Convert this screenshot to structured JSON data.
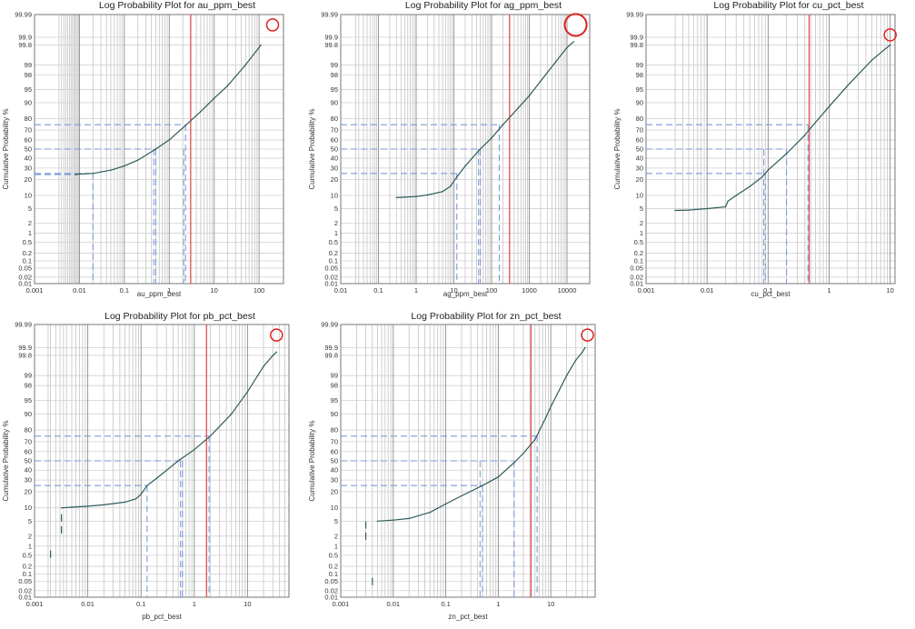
{
  "chart_data": [
    {
      "type": "line",
      "title": "Log Probability Plot for au_ppm_best",
      "xlabel": "au_ppm_best",
      "ylabel": "Cumulative Probability %",
      "xscale": "log",
      "yscale": "probability",
      "xlim": [
        0.001,
        350
      ],
      "ylim": [
        0.01,
        99.99
      ],
      "x_ticks": [
        0.001,
        0.01,
        0.1,
        1,
        10,
        100
      ],
      "x_tick_labels": [
        "0.001",
        "0.01",
        "0.1",
        "1",
        "10",
        "100"
      ],
      "y_ticks": [
        0.01,
        0.02,
        0.05,
        0.1,
        0.2,
        0.5,
        1,
        2,
        5,
        10,
        20,
        30,
        40,
        50,
        60,
        70,
        80,
        90,
        95,
        98,
        99,
        99.8,
        99.9,
        99.99
      ],
      "y_tick_labels": [
        "0.01",
        "0.02",
        "0.05",
        "0.1",
        "0.2",
        "0.5",
        "1",
        "2",
        "5",
        "10",
        "20",
        "30",
        "40",
        "50",
        "60",
        "70",
        "80",
        "90",
        "95",
        "98",
        "99",
        "99.8",
        "99.9",
        "99.99"
      ],
      "grid": true,
      "x_start_line_to": 0.008,
      "vertical_grid": [
        0.0035,
        0.004,
        0.0045,
        0.005,
        0.0055,
        0.006,
        0.0065,
        0.007,
        0.0075,
        0.008,
        0.0085,
        0.009,
        0.0095,
        0.02,
        0.03,
        0.04,
        0.05,
        0.06,
        0.07,
        0.08,
        0.09,
        0.2,
        0.3,
        0.4,
        0.5,
        0.6,
        0.7,
        0.8,
        0.9,
        2,
        3,
        4,
        5,
        6,
        7,
        8,
        9,
        20,
        30,
        40,
        50,
        60,
        70,
        80,
        90
      ],
      "series": [
        {
          "x": [
            0.008,
            0.01,
            0.02,
            0.05,
            0.1,
            0.2,
            0.5,
            1,
            2,
            5,
            10,
            20,
            50,
            100,
            110
          ],
          "y": [
            24,
            24.5,
            25,
            28,
            32,
            38,
            50,
            60,
            72,
            85,
            92,
            96,
            99,
            99.75,
            99.8
          ]
        }
      ],
      "quartiles": [
        {
          "p": 25,
          "x": 0.02
        },
        {
          "p": 50,
          "x": 0.5
        },
        {
          "p": 75,
          "x": 2.3
        }
      ],
      "quartile_ticks": [
        0.45,
        2.1
      ],
      "cutoff_x": 3,
      "highlight": {
        "x": 200,
        "y": 99.97,
        "size": "small"
      }
    },
    {
      "type": "line",
      "title": "Log Probability Plot for ag_ppm_best",
      "xlabel": "ag_ppm_best",
      "ylabel": "Cumulative Probability %",
      "xscale": "log",
      "yscale": "probability",
      "xlim": [
        0.01,
        40000
      ],
      "ylim": [
        0.01,
        99.99
      ],
      "x_ticks": [
        0.01,
        0.1,
        1,
        10,
        100,
        1000,
        10000
      ],
      "x_tick_labels": [
        "0.01",
        "0.1",
        "1",
        "10",
        "100",
        "1000",
        "10000"
      ],
      "y_ticks": [
        0.01,
        0.02,
        0.05,
        0.1,
        0.2,
        0.5,
        1,
        2,
        5,
        10,
        20,
        30,
        40,
        50,
        60,
        70,
        80,
        90,
        95,
        98,
        99,
        99.8,
        99.9,
        99.99
      ],
      "y_tick_labels": [
        "0.01",
        "0.02",
        "0.05",
        "0.1",
        "0.2",
        "0.5",
        "1",
        "2",
        "5",
        "10",
        "20",
        "30",
        "40",
        "50",
        "60",
        "70",
        "80",
        "90",
        "95",
        "98",
        "99",
        "99.8",
        "99.9",
        "99.99"
      ],
      "grid": true,
      "vertical_grid": [
        0.025,
        0.03,
        0.04,
        0.05,
        0.06,
        0.07,
        0.08,
        0.09,
        0.2,
        0.3,
        0.4,
        0.5,
        0.6,
        0.7,
        0.8,
        0.9,
        2,
        3,
        4,
        5,
        6,
        7,
        8,
        9,
        20,
        30,
        40,
        50,
        60,
        70,
        80,
        90,
        200,
        300,
        400,
        500,
        600,
        700,
        800,
        900,
        2000,
        3000,
        4000,
        5000,
        6000,
        7000,
        8000,
        9000
      ],
      "series": [
        {
          "x": [
            0.3,
            0.5,
            1,
            2,
            5,
            8,
            12,
            20,
            50,
            100,
            200,
            500,
            1000,
            2000,
            5000,
            10000,
            15000
          ],
          "y": [
            9,
            9.2,
            9.5,
            10.2,
            12,
            15,
            22,
            32,
            50,
            62,
            75,
            87,
            93,
            97,
            99.2,
            99.75,
            99.85
          ]
        }
      ],
      "quartiles": [
        {
          "p": 25,
          "x": 12
        },
        {
          "p": 50,
          "x": 50
        },
        {
          "p": 75,
          "x": 160
        }
      ],
      "quartile_ticks": [
        45
      ],
      "cutoff_x": 300,
      "highlight": {
        "x": 17000,
        "y": 99.97,
        "size": "large"
      }
    },
    {
      "type": "line",
      "title": "Log Probability Plot for cu_pct_best",
      "xlabel": "cu_pct_best",
      "ylabel": "Cumulative Probability %",
      "xscale": "log",
      "yscale": "probability",
      "xlim": [
        0.001,
        12
      ],
      "ylim": [
        0.01,
        99.99
      ],
      "x_ticks": [
        0.001,
        0.01,
        0.1,
        1,
        10
      ],
      "x_tick_labels": [
        "0.001",
        "0.01",
        "0.1",
        "1",
        "10"
      ],
      "y_ticks": [
        0.01,
        0.02,
        0.05,
        0.1,
        0.2,
        0.5,
        1,
        2,
        5,
        10,
        20,
        30,
        40,
        50,
        60,
        70,
        80,
        90,
        95,
        98,
        99,
        99.8,
        99.9,
        99.99
      ],
      "y_tick_labels": [
        "0.01",
        "0.02",
        "0.05",
        "0.1",
        "0.2",
        "0.5",
        "1",
        "2",
        "5",
        "10",
        "20",
        "30",
        "40",
        "50",
        "60",
        "70",
        "80",
        "90",
        "95",
        "98",
        "99",
        "99.8",
        "99.9",
        "99.99"
      ],
      "grid": true,
      "vertical_grid": [
        0.003,
        0.004,
        0.005,
        0.006,
        0.007,
        0.008,
        0.009,
        0.02,
        0.03,
        0.04,
        0.05,
        0.06,
        0.07,
        0.08,
        0.09,
        0.2,
        0.3,
        0.4,
        0.5,
        0.6,
        0.7,
        0.8,
        0.9,
        2,
        3,
        4,
        5,
        6,
        7,
        8,
        9
      ],
      "series": [
        {
          "x": [
            0.003,
            0.005,
            0.01,
            0.02,
            0.022,
            0.03,
            0.05,
            0.08,
            0.1,
            0.2,
            0.4,
            0.5,
            1,
            2,
            5,
            8,
            10
          ],
          "y": [
            4.5,
            4.6,
            5,
            5.5,
            7.5,
            10,
            15,
            22,
            28,
            45,
            65,
            72,
            88,
            96,
            99.3,
            99.7,
            99.8
          ]
        }
      ],
      "quartiles": [
        {
          "p": 25,
          "x": 0.09
        },
        {
          "p": 50,
          "x": 0.2
        },
        {
          "p": 75,
          "x": 0.45
        }
      ],
      "quartile_ticks": [
        0.085
      ],
      "cutoff_x": 0.47,
      "highlight": {
        "x": 10,
        "y": 99.92,
        "size": "small"
      }
    },
    {
      "type": "line",
      "title": "Log Probability Plot for pb_pct_best",
      "xlabel": "pb_pct_best",
      "ylabel": "Cumulative Probability %",
      "xscale": "log",
      "yscale": "probability",
      "xlim": [
        0.001,
        60
      ],
      "ylim": [
        0.01,
        99.99
      ],
      "x_ticks": [
        0.001,
        0.01,
        0.1,
        1,
        10
      ],
      "x_tick_labels": [
        "0.001",
        "0.01",
        "0.1",
        "1",
        "10"
      ],
      "y_ticks": [
        0.01,
        0.02,
        0.05,
        0.1,
        0.2,
        0.5,
        1,
        2,
        5,
        10,
        20,
        30,
        40,
        50,
        60,
        70,
        80,
        90,
        95,
        98,
        99,
        99.8,
        99.9,
        99.99
      ],
      "y_tick_labels": [
        "0.01",
        "0.02",
        "0.05",
        "0.1",
        "0.2",
        "0.5",
        "1",
        "2",
        "5",
        "10",
        "20",
        "30",
        "40",
        "50",
        "60",
        "70",
        "80",
        "90",
        "95",
        "98",
        "99",
        "99.8",
        "99.9",
        "99.99"
      ],
      "grid": true,
      "vertical_grid": [
        0.0018,
        0.002,
        0.0025,
        0.003,
        0.0035,
        0.004,
        0.005,
        0.006,
        0.007,
        0.008,
        0.009,
        0.02,
        0.03,
        0.04,
        0.05,
        0.06,
        0.07,
        0.08,
        0.09,
        0.2,
        0.3,
        0.4,
        0.5,
        0.6,
        0.7,
        0.8,
        0.9,
        2,
        3,
        4,
        5,
        6,
        7,
        8,
        9,
        20,
        30,
        40,
        50
      ],
      "series": [
        {
          "x": [
            0.0032,
            0.005,
            0.01,
            0.02,
            0.05,
            0.08,
            0.1,
            0.13,
            0.2,
            0.5,
            1,
            2,
            5,
            10,
            20,
            30,
            35
          ],
          "y": [
            10,
            10.3,
            10.8,
            11.5,
            13,
            15,
            18,
            25,
            32,
            50,
            62,
            75,
            90,
            97,
            99.5,
            99.8,
            99.85
          ]
        }
      ],
      "point_markers": [
        {
          "x": 0.002,
          "y": 0.55
        },
        {
          "x": 0.0032,
          "y": 3
        },
        {
          "x": 0.0032,
          "y": 6
        }
      ],
      "quartiles": [
        {
          "p": 25,
          "x": 0.13
        },
        {
          "p": 50,
          "x": 0.6
        },
        {
          "p": 75,
          "x": 1.9
        }
      ],
      "quartile_ticks": [
        0.55
      ],
      "cutoff_x": 1.7,
      "highlight": {
        "x": 35,
        "y": 99.97,
        "size": "small"
      }
    },
    {
      "type": "line",
      "title": "Log Probability Plot for zn_pct_best",
      "xlabel": "zn_pct_best",
      "ylabel": "Cumulative Probability %",
      "xscale": "log",
      "yscale": "probability",
      "xlim": [
        0.001,
        70
      ],
      "ylim": [
        0.01,
        99.99
      ],
      "x_ticks": [
        0.001,
        0.01,
        0.1,
        1,
        10
      ],
      "x_tick_labels": [
        "0.001",
        "0.01",
        "0.1",
        "1",
        "10"
      ],
      "y_ticks": [
        0.01,
        0.02,
        0.05,
        0.1,
        0.2,
        0.5,
        1,
        2,
        5,
        10,
        20,
        30,
        40,
        50,
        60,
        70,
        80,
        90,
        95,
        98,
        99,
        99.8,
        99.9,
        99.99
      ],
      "y_tick_labels": [
        "0.01",
        "0.02",
        "0.05",
        "0.1",
        "0.2",
        "0.5",
        "1",
        "2",
        "5",
        "10",
        "20",
        "30",
        "40",
        "50",
        "60",
        "70",
        "80",
        "90",
        "95",
        "98",
        "99",
        "99.8",
        "99.9",
        "99.99"
      ],
      "grid": true,
      "vertical_grid": [
        0.002,
        0.003,
        0.004,
        0.005,
        0.006,
        0.007,
        0.008,
        0.009,
        0.02,
        0.03,
        0.04,
        0.05,
        0.06,
        0.07,
        0.08,
        0.09,
        0.2,
        0.3,
        0.4,
        0.5,
        0.6,
        0.7,
        0.8,
        0.9,
        2,
        3,
        4,
        5,
        6,
        7,
        8,
        9,
        20,
        30,
        40,
        50
      ],
      "series": [
        {
          "x": [
            0.005,
            0.01,
            0.02,
            0.05,
            0.1,
            0.2,
            0.5,
            1,
            2,
            3,
            5,
            8,
            10,
            20,
            30,
            40,
            45
          ],
          "y": [
            5,
            5.3,
            5.8,
            8,
            12,
            17,
            25,
            33,
            48,
            58,
            72,
            88,
            93,
            99,
            99.7,
            99.85,
            99.9
          ]
        }
      ],
      "point_markers": [
        {
          "x": 0.003,
          "y": 2
        },
        {
          "x": 0.003,
          "y": 4
        },
        {
          "x": 0.004,
          "y": 0.05
        }
      ],
      "quartiles": [
        {
          "p": 25,
          "x": 0.5
        },
        {
          "p": 50,
          "x": 2
        },
        {
          "p": 75,
          "x": 5.5
        }
      ],
      "quartile_ticks": [
        0.45
      ],
      "cutoff_x": 4.2,
      "highlight": {
        "x": 50,
        "y": 99.97,
        "size": "small"
      }
    }
  ]
}
